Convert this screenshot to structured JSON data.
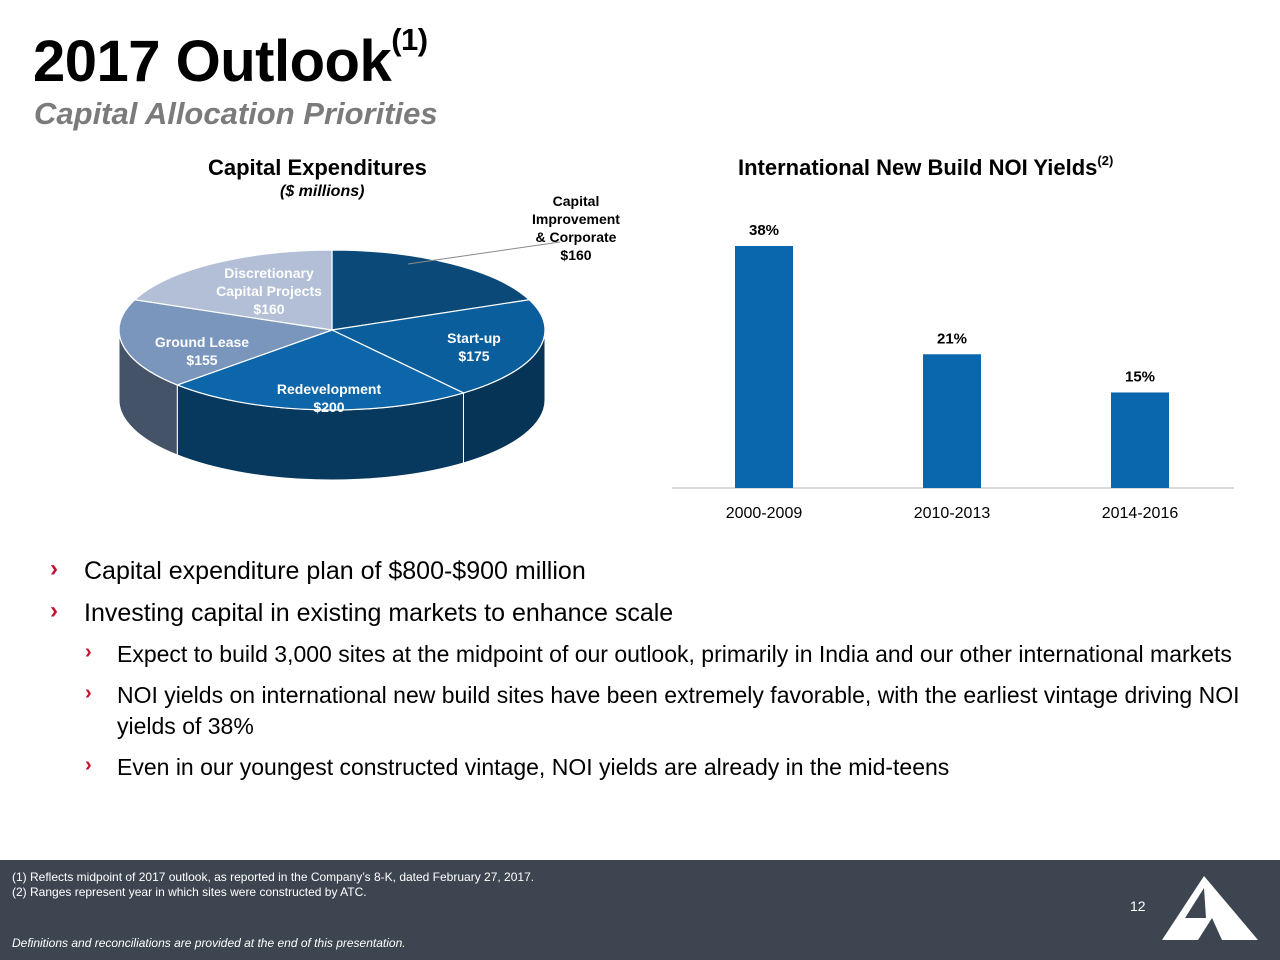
{
  "header": {
    "title": "2017 Outlook",
    "title_sup": "(1)",
    "subtitle": "Capital Allocation Priorities"
  },
  "pie": {
    "title": "Capital Expenditures",
    "unit": "($ millions)",
    "labels": {
      "capital_improvement": [
        "Capital",
        "Improvement",
        "& Corporate",
        "$160"
      ],
      "discretionary": [
        "Discretionary",
        "Capital Projects",
        "$160"
      ],
      "ground_lease": [
        "Ground Lease",
        "$155"
      ],
      "startup": [
        "Start-up",
        "$175"
      ],
      "redevelopment": [
        "Redevelopment",
        "$200"
      ]
    }
  },
  "bar": {
    "title": "International New Build NOI Yields",
    "title_sup": "(2)"
  },
  "chart_data": [
    {
      "type": "pie",
      "title": "Capital Expenditures",
      "subtitle": "($ millions)",
      "slices": [
        {
          "label": "Capital Improvement & Corporate",
          "value": 160,
          "color": "#0b4a78"
        },
        {
          "label": "Start-up",
          "value": 175,
          "color": "#0a5e9c"
        },
        {
          "label": "Redevelopment",
          "value": 200,
          "color": "#0d66aa"
        },
        {
          "label": "Ground Lease",
          "value": 155,
          "color": "#7b96bd"
        },
        {
          "label": "Discretionary Capital Projects",
          "value": 160,
          "color": "#b2bfd6"
        }
      ]
    },
    {
      "type": "bar",
      "title": "International New Build NOI Yields",
      "categories": [
        "2000-2009",
        "2010-2013",
        "2014-2016"
      ],
      "values": [
        38,
        21,
        15
      ],
      "value_labels": [
        "38%",
        "21%",
        "15%"
      ],
      "ylim": [
        0,
        40
      ],
      "bar_color": "#0a66ad"
    }
  ],
  "bullets": [
    {
      "level": 1,
      "text": "Capital expenditure plan of $800-$900 million"
    },
    {
      "level": 1,
      "text": "Investing capital in existing markets to enhance scale"
    },
    {
      "level": 2,
      "text": "Expect to build 3,000 sites at the midpoint of our outlook, primarily in India and our other international markets"
    },
    {
      "level": 2,
      "text": "NOI yields on international new build sites have been extremely favorable, with the earliest vintage driving NOI yields of 38%"
    },
    {
      "level": 2,
      "text": "Even in our youngest constructed vintage, NOI yields are already in the mid-teens"
    }
  ],
  "bullet_marker": "›",
  "footer": {
    "footnote1": "(1)   Reflects midpoint of 2017 outlook, as reported in the Company’s 8-K, dated February 27, 2017.",
    "footnote2": "(2)   Ranges represent year in which sites were constructed by ATC.",
    "disclaimer": "Definitions and reconciliations are provided at the end of this presentation.",
    "page_number": "12"
  },
  "colors": {
    "accent_red": "#c8102e",
    "footer_bg": "#3d4650",
    "bar_blue": "#0a66ad",
    "subtitle_gray": "#7b7b7b"
  }
}
